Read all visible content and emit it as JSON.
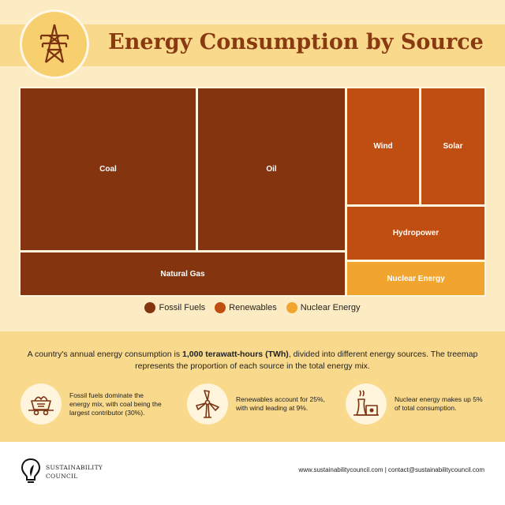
{
  "header": {
    "title": "Energy Consumption by Source"
  },
  "chart_data": {
    "type": "treemap",
    "title": "Energy Consumption by Source",
    "unit": "%",
    "items": [
      {
        "name": "Coal",
        "group": "Fossil Fuels",
        "value": 30
      },
      {
        "name": "Oil",
        "group": "Fossil Fuels",
        "value": 25
      },
      {
        "name": "Natural Gas",
        "group": "Fossil Fuels",
        "value": 15
      },
      {
        "name": "Wind",
        "group": "Renewables",
        "value": 9
      },
      {
        "name": "Solar",
        "group": "Renewables",
        "value": 8
      },
      {
        "name": "Hydropower",
        "group": "Renewables",
        "value": 8
      },
      {
        "name": "Nuclear Energy",
        "group": "Nuclear Energy",
        "value": 5
      }
    ],
    "legend": [
      {
        "label": "Fossil Fuels",
        "color": "#843510"
      },
      {
        "label": "Renewables",
        "color": "#c04e12"
      },
      {
        "label": "Nuclear Energy",
        "color": "#f1a52e"
      }
    ]
  },
  "summary": {
    "text_before": "A country's annual energy consumption is ",
    "text_bold": "1,000 terawatt-hours (TWh)",
    "text_after": ", divided into different energy sources. The treemap represents the proportion of each source in the total energy mix."
  },
  "facts": [
    {
      "icon": "coal-cart-icon",
      "text": "Fossil fuels dominate the energy mix, with coal being the largest contributor (30%)."
    },
    {
      "icon": "wind-turbine-icon",
      "text": "Renewables account for 25%, with wind leading at 9%."
    },
    {
      "icon": "nuclear-plant-icon",
      "text": "Nuclear energy makes up 5% of total consumption."
    }
  ],
  "footer": {
    "org_line1": "SUSTAINABILITY",
    "org_line2": "COUNCIL",
    "contact": "www.sustainabilitycouncil.com | contact@sustainabilitycouncil.com"
  }
}
